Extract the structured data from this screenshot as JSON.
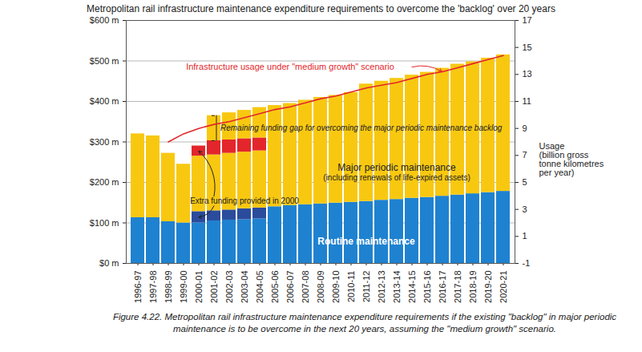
{
  "chart_data": {
    "type": "bar",
    "stacked": true,
    "title": "Metropolitan rail infrastructure maintenance expenditure requirements to overcome the 'backlog' over 20 years",
    "caption": "Figure 4.22. Metropolitan rail infrastructure maintenance expenditure requirements if the existing \"backlog\" in major periodic maintenance is to be overcome in the next 20 years, assuming the \"medium growth\" scenario.",
    "categories": [
      "1996-97",
      "1997-98",
      "1998-99",
      "1999-00",
      "2000-01",
      "2001-02",
      "2002-03",
      "2003-04",
      "2004-05",
      "2005-06",
      "2006-07",
      "2007-08",
      "2008-09",
      "2009-10",
      "2010-11",
      "2011-12",
      "2012-13",
      "2013-14",
      "2014-15",
      "2015-16",
      "2016-17",
      "2017-18",
      "2018-19",
      "2019-20",
      "2020-21"
    ],
    "ylim": [
      0,
      600
    ],
    "yticks": [
      {
        "value": 0,
        "label": "$0 m"
      },
      {
        "value": 100,
        "label": "$100 m"
      },
      {
        "value": 200,
        "label": "$200 m"
      },
      {
        "value": 300,
        "label": "$300 m"
      },
      {
        "value": 400,
        "label": "$400 m"
      },
      {
        "value": 500,
        "label": "$500 m"
      },
      {
        "value": 600,
        "label": "$600 m"
      }
    ],
    "y2lim": [
      -1,
      17
    ],
    "y2ticks": [
      -1,
      1,
      3,
      5,
      7,
      9,
      11,
      13,
      15,
      17
    ],
    "y2label": "Usage\n(billion gross\ntonne kilometres\nper year)",
    "grid": true,
    "series": [
      {
        "name": "Routine maintenance",
        "type": "bar",
        "color": "#1f82d0",
        "values": [
          113,
          113,
          103,
          100,
          100,
          105,
          107,
          108,
          110,
          140,
          143,
          145,
          147,
          149,
          151,
          153,
          156,
          158,
          161,
          163,
          166,
          169,
          172,
          175,
          178
        ]
      },
      {
        "name": "Extra funding provided in 2000",
        "type": "bar",
        "color": "#2b4c9c",
        "values": [
          null,
          null,
          null,
          null,
          28,
          25,
          25,
          27,
          27,
          null,
          null,
          null,
          null,
          null,
          null,
          null,
          null,
          null,
          null,
          null,
          null,
          null,
          null,
          null,
          null
        ]
      },
      {
        "name": "Major periodic maintenance",
        "type": "bar",
        "color": "#f8c811",
        "values": [
          207,
          202,
          169,
          145,
          137,
          138,
          140,
          140,
          141,
          250,
          252,
          258,
          263,
          266,
          271,
          290,
          294,
          299,
          304,
          309,
          316,
          323,
          326,
          332,
          337
        ]
      },
      {
        "name": "Extra funding provided in 2000",
        "type": "bar",
        "color": "#e3262b",
        "values": [
          null,
          null,
          null,
          null,
          25,
          35,
          33,
          33,
          32,
          null,
          null,
          null,
          null,
          null,
          null,
          null,
          null,
          null,
          null,
          null,
          null,
          null,
          null,
          null,
          null
        ]
      },
      {
        "name": "Remaining funding gap for overcoming the major periodic maintenance backlog",
        "type": "bar",
        "color": "#f8c811",
        "values": [
          null,
          null,
          null,
          null,
          null,
          62,
          67,
          70,
          75,
          null,
          null,
          null,
          null,
          null,
          null,
          null,
          null,
          null,
          null,
          null,
          null,
          null,
          null,
          null,
          null
        ]
      },
      {
        "name": "Infrastructure usage under \"medium growth\" scenario",
        "type": "line",
        "axis": "y2",
        "color": "#e3262b",
        "values": [
          null,
          null,
          8.0,
          8.6,
          9.0,
          9.3,
          9.5,
          9.8,
          10.1,
          10.4,
          10.6,
          10.9,
          11.2,
          11.4,
          11.7,
          12.0,
          12.2,
          12.4,
          12.7,
          13.0,
          13.2,
          13.5,
          13.8,
          14.1,
          14.4
        ]
      }
    ],
    "annotations": [
      {
        "text": "Infrastructure usage under \"medium growth\" scenario",
        "x": "2006-07",
        "y": 485
      },
      {
        "text": "Remaining funding gap for overcoming the major periodic maintenance backlog",
        "x": "2001-02",
        "y": 334
      },
      {
        "text": "Major periodic maintenance",
        "x": "2013-14",
        "y": 236
      },
      {
        "text": "(including renewals of life-expired assets)",
        "x": "2013-14",
        "y": 212
      },
      {
        "text": "Extra funding provided in 2000",
        "x": "2003-04",
        "y": 154
      },
      {
        "text": "Routine maintenance",
        "x": "2011-12",
        "y": 55
      }
    ]
  }
}
